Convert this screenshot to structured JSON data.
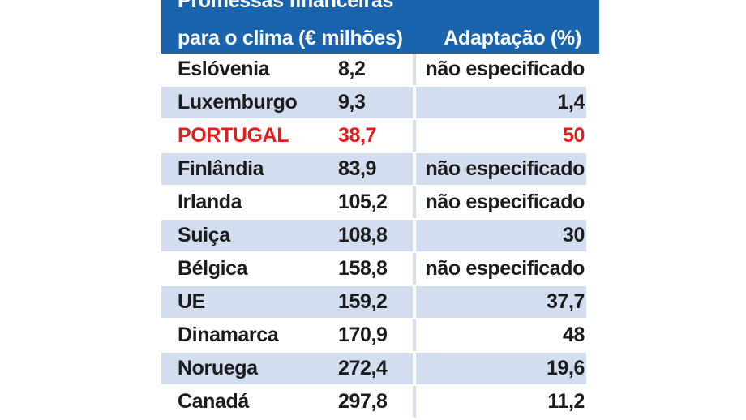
{
  "chart_data": {
    "type": "table",
    "header": {
      "line1": "Promessas financeiras",
      "line2": "para o clima (€ milhões)",
      "col2": "Adaptação (%)"
    },
    "highlight_color": "#e0201d",
    "header_color": "#1a64ae",
    "stripe_color": "#d2ddef",
    "rows": [
      {
        "country": "Eslóvenia",
        "value": "8,2",
        "adaptation": "não especificado",
        "highlight": false
      },
      {
        "country": "Luxemburgo",
        "value": "9,3",
        "adaptation": "1,4",
        "highlight": false
      },
      {
        "country": "PORTUGAL",
        "value": "38,7",
        "adaptation": "50",
        "highlight": true
      },
      {
        "country": "Finlândia",
        "value": "83,9",
        "adaptation": "não especificado",
        "highlight": false
      },
      {
        "country": "Irlanda",
        "value": "105,2",
        "adaptation": "não especificado",
        "highlight": false
      },
      {
        "country": "Suiça",
        "value": "108,8",
        "adaptation": "30",
        "highlight": false
      },
      {
        "country": "Bélgica",
        "value": "158,8",
        "adaptation": "não especificado",
        "highlight": false
      },
      {
        "country": "UE",
        "value": "159,2",
        "adaptation": "37,7",
        "highlight": false
      },
      {
        "country": "Dinamarca",
        "value": "170,9",
        "adaptation": "48",
        "highlight": false
      },
      {
        "country": "Noruega",
        "value": "272,4",
        "adaptation": "19,6",
        "highlight": false
      },
      {
        "country": "Canadá",
        "value": "297,8",
        "adaptation": "11,2",
        "highlight": false
      }
    ]
  }
}
